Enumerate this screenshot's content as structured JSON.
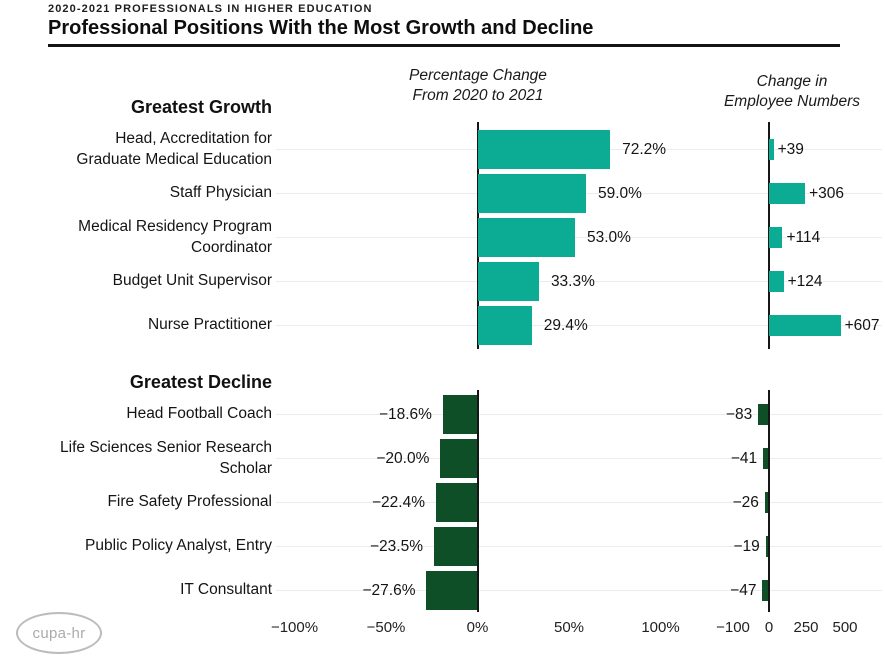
{
  "page": {
    "kicker": "2020-2021 PROFESSIONALS IN HIGHER EDUCATION",
    "title": "Professional Positions With the Most Growth and Decline"
  },
  "columns": {
    "pct_header": "Percentage Change\nFrom 2020 to 2021",
    "num_header": "Change in\nEmployee Numbers"
  },
  "logo": {
    "text": "cupa-hr"
  },
  "chart_data": {
    "type": "bar",
    "orientation": "horizontal",
    "title": "Professional Positions With the Most Growth and Decline",
    "subtitle": "2020-2021 Professionals in Higher Education",
    "panels": [
      "Percentage Change From 2020 to 2021",
      "Change in Employee Numbers"
    ],
    "grid": "horizontal-light",
    "legend": "none",
    "colors": {
      "growth": "#0bab94",
      "decline": "#0f4f28"
    },
    "sections": [
      {
        "heading": "Greatest Growth",
        "rows": [
          {
            "label": "Head, Accreditation for\nGraduate Medical Education",
            "pct": 72.2,
            "pct_label": "72.2%",
            "count": 39,
            "count_label": "+39"
          },
          {
            "label": "Staff Physician",
            "pct": 59.0,
            "pct_label": "59.0%",
            "count": 306,
            "count_label": "+306"
          },
          {
            "label": "Medical Residency Program\nCoordinator",
            "pct": 53.0,
            "pct_label": "53.0%",
            "count": 114,
            "count_label": "+114"
          },
          {
            "label": "Budget Unit Supervisor",
            "pct": 33.3,
            "pct_label": "33.3%",
            "count": 124,
            "count_label": "+124"
          },
          {
            "label": "Nurse Practitioner",
            "pct": 29.4,
            "pct_label": "29.4%",
            "count": 607,
            "count_label": "+607"
          }
        ]
      },
      {
        "heading": "Greatest Decline",
        "rows": [
          {
            "label": "Head Football Coach",
            "pct": -18.6,
            "pct_label": "−18.6%",
            "count": -83,
            "count_label": "−83"
          },
          {
            "label": "Life Sciences Senior Research\nScholar",
            "pct": -20.0,
            "pct_label": "−20.0%",
            "count": -41,
            "count_label": "−41"
          },
          {
            "label": "Fire Safety Professional",
            "pct": -22.4,
            "pct_label": "−22.4%",
            "count": -26,
            "count_label": "−26"
          },
          {
            "label": "Public Policy Analyst, Entry",
            "pct": -23.5,
            "pct_label": "−23.5%",
            "count": -19,
            "count_label": "−19"
          },
          {
            "label": "IT Consultant",
            "pct": -27.6,
            "pct_label": "−27.6%",
            "count": -47,
            "count_label": "−47"
          }
        ]
      }
    ],
    "pct_axis": {
      "range": [
        -100,
        100
      ],
      "ticks": [
        {
          "v": -100,
          "label": "−100%"
        },
        {
          "v": -50,
          "label": "−50%"
        },
        {
          "v": 0,
          "label": "0%"
        },
        {
          "v": 50,
          "label": "50%"
        },
        {
          "v": 100,
          "label": "100%"
        }
      ]
    },
    "num_axis": {
      "range": [
        -100,
        500
      ],
      "ticks": [
        {
          "v": -100,
          "label": "−100"
        },
        {
          "v": 0,
          "label": "0"
        },
        {
          "v": 250,
          "label": "250"
        },
        {
          "v": 500,
          "label": "500"
        }
      ]
    }
  }
}
